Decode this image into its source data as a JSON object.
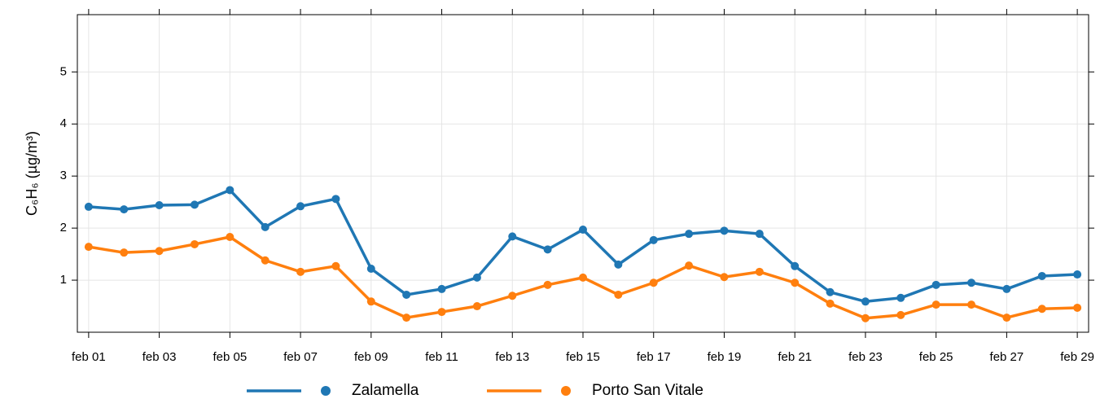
{
  "chart_data": {
    "type": "line",
    "y_label": "C₆H₆ (µg/m³)",
    "categories": [
      "feb 01",
      null,
      "feb 03",
      null,
      "feb 05",
      null,
      "feb 07",
      null,
      "feb 09",
      null,
      "feb 11",
      null,
      "feb 13",
      null,
      "feb 15",
      null,
      "feb 17",
      null,
      "feb 19",
      null,
      "feb 21",
      null,
      "feb 23",
      null,
      "feb 25",
      null,
      "feb 27",
      null,
      "feb 29"
    ],
    "series": [
      {
        "name": "Zalamella",
        "color": "#1f77b4",
        "values": [
          2.41,
          2.36,
          2.44,
          2.45,
          2.73,
          2.02,
          2.42,
          2.56,
          1.22,
          0.72,
          0.83,
          1.05,
          1.84,
          1.59,
          1.97,
          1.3,
          1.77,
          1.89,
          1.95,
          1.89,
          1.27,
          0.77,
          0.59,
          0.66,
          0.91,
          0.95,
          0.83,
          1.08,
          1.11
        ]
      },
      {
        "name": "Porto San Vitale",
        "color": "#ff7f0e",
        "values": [
          1.64,
          1.53,
          1.56,
          1.69,
          1.83,
          1.38,
          1.16,
          1.27,
          0.59,
          0.28,
          0.39,
          0.5,
          0.7,
          0.91,
          1.05,
          0.72,
          0.95,
          1.28,
          1.06,
          1.16,
          0.95,
          0.55,
          0.27,
          0.33,
          0.53,
          0.53,
          0.28,
          0.45,
          0.47
        ]
      }
    ],
    "ylim": [
      0,
      6.1
    ],
    "yticks": [
      1,
      2,
      3,
      4,
      5
    ],
    "grid": true
  }
}
